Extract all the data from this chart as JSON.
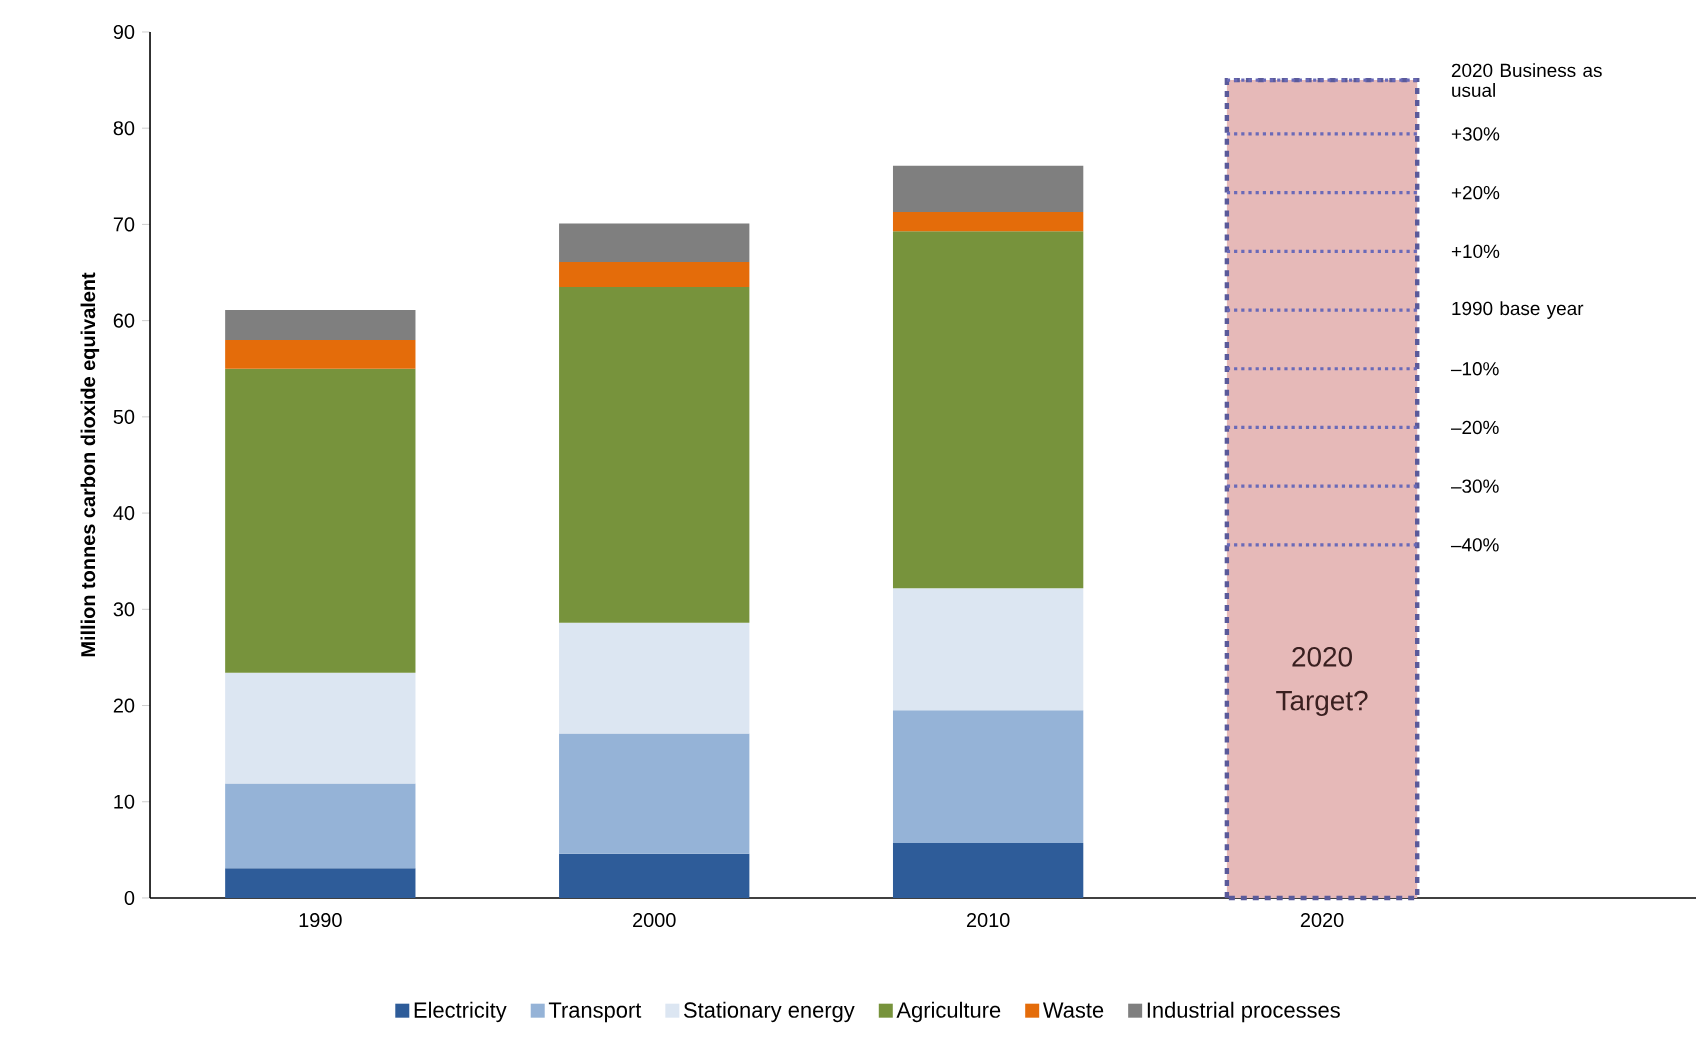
{
  "chart_data": {
    "type": "bar",
    "stacked": true,
    "ylabel": "Million tonnes carbon dioxide equivalent",
    "categories": [
      "1990",
      "2000",
      "2010",
      "2020"
    ],
    "series": [
      {
        "name": "Electricity",
        "color": "#2e5c99",
        "values": [
          3.1,
          4.6,
          5.7,
          null
        ]
      },
      {
        "name": "Transport",
        "color": "#95b3d7",
        "values": [
          8.8,
          12.5,
          13.8,
          null
        ]
      },
      {
        "name": "Stationary energy",
        "color": "#dce6f2",
        "values": [
          11.5,
          11.5,
          12.7,
          null
        ]
      },
      {
        "name": "Agriculture",
        "color": "#77933c",
        "values": [
          31.6,
          34.9,
          37.1,
          null
        ]
      },
      {
        "name": "Waste",
        "color": "#e46c0a",
        "values": [
          3.0,
          2.6,
          2.0,
          null
        ]
      },
      {
        "name": "Industrial processes",
        "color": "#7f7f7f",
        "values": [
          3.1,
          4.0,
          4.8,
          null
        ]
      },
      {
        "color": "#e6b9b8",
        "line_style": "dashed",
        "values": [
          null,
          null,
          null,
          85
        ]
      }
    ],
    "ylim": [
      0,
      90
    ],
    "yticks": [
      0,
      10,
      20,
      30,
      40,
      50,
      60,
      70,
      80,
      90
    ],
    "ref_lines": [
      {
        "axis": "y",
        "value": 85,
        "label": "2020 Business as usual",
        "color": "#6a6ab8",
        "line_style": "dotted"
      },
      {
        "axis": "y",
        "value": 79.4,
        "color": "#6a6ab8",
        "line_style": "dotted"
      },
      {
        "axis": "y",
        "value": 73.3,
        "color": "#6a6ab8",
        "line_style": "dotted"
      },
      {
        "axis": "y",
        "value": 67.2,
        "color": "#6a6ab8",
        "line_style": "dotted"
      },
      {
        "axis": "y",
        "value": 61.1,
        "label": "1990 base year",
        "color": "#6a6ab8",
        "line_style": "dotted"
      },
      {
        "axis": "y",
        "value": 55.0,
        "color": "#6a6ab8",
        "line_style": "dotted"
      },
      {
        "axis": "y",
        "value": 48.9,
        "color": "#6a6ab8",
        "line_style": "dotted"
      },
      {
        "axis": "y",
        "value": 42.8,
        "color": "#6a6ab8",
        "line_style": "dotted"
      },
      {
        "axis": "y",
        "value": 36.7,
        "color": "#6a6ab8",
        "line_style": "dotted"
      }
    ],
    "annotations": [
      "2020 Target?",
      "+30%",
      "+20%",
      "+10%",
      "–10%",
      "–20%",
      "–30%",
      "–40%"
    ],
    "legend": "bottom",
    "grid": false
  }
}
